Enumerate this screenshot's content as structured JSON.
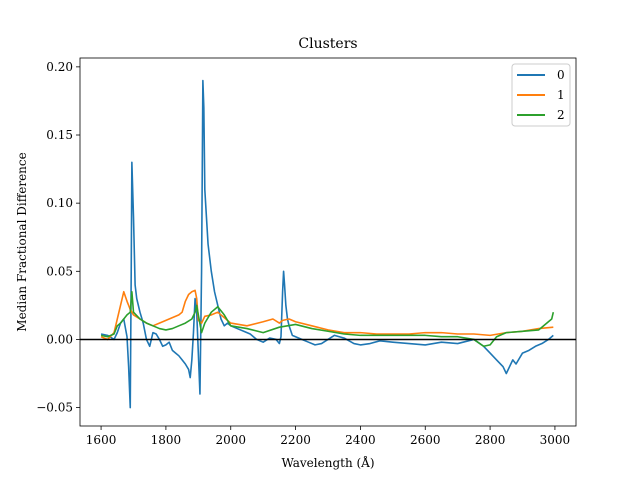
{
  "chart_data": {
    "type": "line",
    "title": "Clusters",
    "xlabel": "Wavelength (Å)",
    "ylabel": "Median Fractional Difference",
    "xlim": [
      1535,
      3065
    ],
    "ylim": [
      -0.0635,
      0.2065
    ],
    "xticks": [
      1600,
      1800,
      2000,
      2200,
      2400,
      2600,
      2800,
      3000
    ],
    "yticks": [
      -0.05,
      0.0,
      0.05,
      0.1,
      0.15,
      0.2
    ],
    "ytick_labels": [
      "−0.05",
      "0.00",
      "0.05",
      "0.10",
      "0.15",
      "0.20"
    ],
    "grid": false,
    "legend_position": "top-right",
    "reference_line": {
      "y": 0.0,
      "color": "#000000"
    },
    "series": [
      {
        "name": "0",
        "color": "#1f77b4",
        "x": [
          1600,
          1620,
          1640,
          1650,
          1660,
          1670,
          1680,
          1685,
          1690,
          1693,
          1695,
          1700,
          1705,
          1710,
          1720,
          1730,
          1740,
          1750,
          1760,
          1770,
          1780,
          1790,
          1800,
          1810,
          1820,
          1830,
          1840,
          1850,
          1860,
          1870,
          1875,
          1880,
          1885,
          1890,
          1895,
          1900,
          1905,
          1910,
          1914,
          1917,
          1920,
          1925,
          1930,
          1940,
          1950,
          1960,
          1970,
          1980,
          1990,
          2000,
          2020,
          2040,
          2060,
          2080,
          2100,
          2120,
          2140,
          2150,
          2155,
          2160,
          2163,
          2166,
          2170,
          2175,
          2180,
          2190,
          2200,
          2220,
          2240,
          2260,
          2280,
          2300,
          2320,
          2350,
          2380,
          2400,
          2430,
          2460,
          2500,
          2550,
          2600,
          2650,
          2700,
          2750,
          2780,
          2800,
          2820,
          2840,
          2850,
          2860,
          2870,
          2880,
          2900,
          2920,
          2940,
          2960,
          2980,
          2995
        ],
        "values": [
          0.004,
          0.003,
          0.0,
          0.005,
          0.012,
          0.015,
          0.002,
          -0.02,
          -0.05,
          0.05,
          0.13,
          0.09,
          0.04,
          0.03,
          0.02,
          0.012,
          0.0,
          -0.005,
          0.005,
          0.004,
          0.0,
          -0.005,
          -0.004,
          -0.002,
          -0.008,
          -0.01,
          -0.012,
          -0.015,
          -0.018,
          -0.022,
          -0.028,
          -0.015,
          0.005,
          0.03,
          0.02,
          -0.01,
          -0.04,
          0.05,
          0.19,
          0.17,
          0.11,
          0.09,
          0.07,
          0.05,
          0.035,
          0.025,
          0.015,
          0.01,
          0.012,
          0.01,
          0.008,
          0.006,
          0.004,
          0.0,
          -0.002,
          0.001,
          0.0,
          -0.003,
          0.002,
          0.035,
          0.05,
          0.04,
          0.025,
          0.015,
          0.01,
          0.003,
          0.002,
          0.0,
          -0.002,
          -0.004,
          -0.003,
          0.0,
          0.003,
          0.001,
          -0.003,
          -0.004,
          -0.003,
          -0.001,
          -0.002,
          -0.003,
          -0.004,
          -0.002,
          -0.003,
          0.0,
          -0.005,
          -0.01,
          -0.015,
          -0.02,
          -0.025,
          -0.02,
          -0.015,
          -0.018,
          -0.01,
          -0.008,
          -0.005,
          -0.003,
          0.0,
          0.003
        ]
      },
      {
        "name": "1",
        "color": "#ff7f0e",
        "x": [
          1600,
          1620,
          1640,
          1650,
          1660,
          1670,
          1680,
          1690,
          1700,
          1720,
          1740,
          1760,
          1780,
          1800,
          1820,
          1840,
          1850,
          1860,
          1870,
          1880,
          1890,
          1895,
          1900,
          1910,
          1920,
          1940,
          1960,
          1980,
          2000,
          2050,
          2100,
          2130,
          2150,
          2160,
          2180,
          2200,
          2250,
          2300,
          2350,
          2400,
          2450,
          2500,
          2550,
          2600,
          2650,
          2700,
          2750,
          2800,
          2850,
          2900,
          2950,
          2995
        ],
        "values": [
          0.002,
          0.0,
          0.005,
          0.015,
          0.025,
          0.035,
          0.028,
          0.022,
          0.018,
          0.015,
          0.012,
          0.01,
          0.012,
          0.014,
          0.016,
          0.018,
          0.02,
          0.028,
          0.033,
          0.035,
          0.036,
          0.03,
          0.014,
          0.012,
          0.017,
          0.018,
          0.02,
          0.016,
          0.012,
          0.01,
          0.013,
          0.015,
          0.012,
          0.014,
          0.015,
          0.013,
          0.01,
          0.007,
          0.005,
          0.005,
          0.004,
          0.004,
          0.004,
          0.005,
          0.005,
          0.004,
          0.004,
          0.003,
          0.005,
          0.006,
          0.008,
          0.009
        ]
      },
      {
        "name": "2",
        "color": "#2ca02c",
        "x": [
          1600,
          1620,
          1640,
          1650,
          1660,
          1670,
          1680,
          1690,
          1695,
          1700,
          1720,
          1740,
          1760,
          1780,
          1800,
          1820,
          1840,
          1860,
          1880,
          1890,
          1895,
          1900,
          1910,
          1920,
          1940,
          1960,
          1980,
          2000,
          2050,
          2100,
          2150,
          2200,
          2250,
          2300,
          2350,
          2400,
          2450,
          2500,
          2550,
          2600,
          2650,
          2700,
          2750,
          2780,
          2800,
          2820,
          2850,
          2900,
          2950,
          2990,
          2995
        ],
        "values": [
          0.003,
          0.002,
          0.004,
          0.01,
          0.012,
          0.015,
          0.018,
          0.02,
          0.035,
          0.02,
          0.015,
          0.012,
          0.01,
          0.008,
          0.007,
          0.008,
          0.01,
          0.012,
          0.015,
          0.02,
          0.025,
          0.018,
          0.005,
          0.012,
          0.02,
          0.024,
          0.018,
          0.01,
          0.008,
          0.005,
          0.009,
          0.011,
          0.008,
          0.006,
          0.004,
          0.003,
          0.003,
          0.003,
          0.003,
          0.003,
          0.002,
          0.002,
          0.0,
          -0.005,
          -0.004,
          0.002,
          0.005,
          0.006,
          0.007,
          0.015,
          0.02
        ]
      }
    ]
  }
}
